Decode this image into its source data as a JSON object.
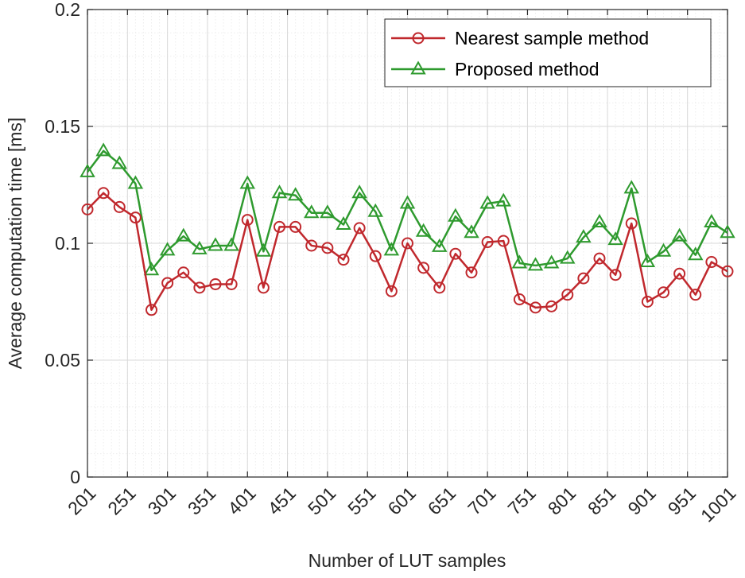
{
  "chart_data": {
    "type": "line",
    "xlabel": "Number of LUT samples",
    "ylabel": "Average computation time [ms]",
    "xlim": [
      201,
      1001
    ],
    "ylim": [
      0,
      0.2
    ],
    "x_ticks": [
      201,
      251,
      301,
      351,
      401,
      451,
      501,
      551,
      601,
      651,
      701,
      751,
      801,
      851,
      901,
      951,
      1001
    ],
    "x_tick_labels": [
      "201",
      "251",
      "301",
      "351",
      "401",
      "451",
      "501",
      "551",
      "601",
      "651",
      "701",
      "751",
      "801",
      "851",
      "901",
      "951",
      "1001"
    ],
    "y_ticks": [
      0,
      0.05,
      0.1,
      0.15,
      0.2
    ],
    "y_tick_labels": [
      "0",
      "0.05",
      "0.1",
      "0.15",
      "0.2"
    ],
    "grid": true,
    "minor_grid": true,
    "legend_position": "top-right",
    "x": [
      201,
      221,
      241,
      261,
      281,
      301,
      321,
      341,
      361,
      381,
      401,
      421,
      441,
      461,
      481,
      501,
      521,
      541,
      561,
      581,
      601,
      621,
      641,
      661,
      681,
      701,
      721,
      741,
      761,
      781,
      801,
      821,
      841,
      861,
      881,
      901,
      921,
      941,
      961,
      981,
      1001
    ],
    "series": [
      {
        "name": "Nearest sample method",
        "color": "#c0282d",
        "marker": "circle",
        "values": [
          0.1145,
          0.1215,
          0.1155,
          0.111,
          0.0715,
          0.083,
          0.0875,
          0.081,
          0.0825,
          0.0825,
          0.11,
          0.081,
          0.107,
          0.107,
          0.099,
          0.098,
          0.093,
          0.1065,
          0.0945,
          0.0795,
          0.1,
          0.0895,
          0.081,
          0.0955,
          0.0875,
          0.1005,
          0.101,
          0.076,
          0.0725,
          0.073,
          0.078,
          0.085,
          0.0935,
          0.0865,
          0.1085,
          0.075,
          0.079,
          0.087,
          0.078,
          0.092,
          0.088
        ]
      },
      {
        "name": "Proposed method",
        "color": "#2e9a2e",
        "marker": "triangle",
        "values": [
          0.1305,
          0.1395,
          0.134,
          0.1255,
          0.0885,
          0.097,
          0.103,
          0.0975,
          0.099,
          0.099,
          0.1255,
          0.0965,
          0.1215,
          0.1205,
          0.113,
          0.113,
          0.108,
          0.1215,
          0.1135,
          0.097,
          0.117,
          0.105,
          0.0985,
          0.1115,
          0.1045,
          0.117,
          0.118,
          0.0915,
          0.0905,
          0.0915,
          0.0935,
          0.1025,
          0.109,
          0.1015,
          0.1235,
          0.092,
          0.0965,
          0.103,
          0.095,
          0.109,
          0.1045
        ]
      }
    ]
  }
}
